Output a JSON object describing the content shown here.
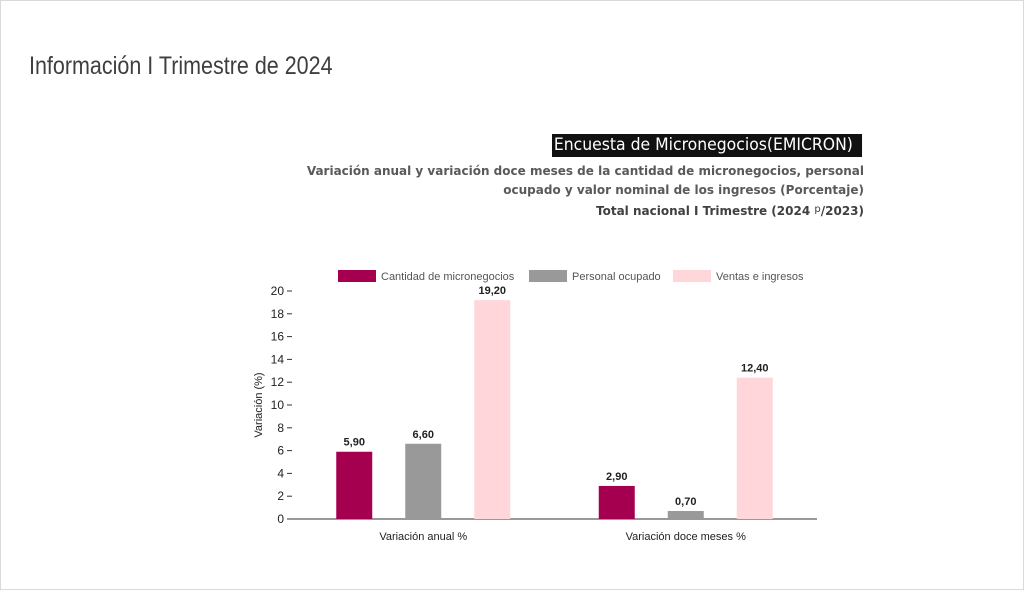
{
  "page": {
    "title": "Información I Trimestre de 2024"
  },
  "chart_heading": "Encuesta de Micronegocios(EMICRON)",
  "subtitle": {
    "line1": "Variación anual y variación doce meses de la cantidad de micronegocios, personal",
    "line2": "ocupado y valor nominal de los ingresos (Porcentaje)",
    "line3_prefix": "Total nacional I Trimestre (2024",
    "line3_sup": "p",
    "line3_suffix": "/2023)"
  },
  "chart_data": {
    "type": "bar",
    "categories": [
      "Variación anual %",
      "Variación doce meses %"
    ],
    "series": [
      {
        "name": "Cantidad de micronegocios",
        "values": [
          5.9,
          2.9
        ],
        "labels": [
          "5,90",
          "2,90"
        ],
        "color": "#a50050"
      },
      {
        "name": "Personal ocupado",
        "values": [
          6.6,
          0.7
        ],
        "labels": [
          "6,60",
          "0,70"
        ],
        "color": "#999999"
      },
      {
        "name": "Ventas e ingresos",
        "values": [
          19.2,
          12.4
        ],
        "labels": [
          "19,20",
          "12,40"
        ],
        "color": "#ffd6d9"
      }
    ],
    "ylabel": "Variación (%)",
    "ylim": [
      0,
      20
    ],
    "yticks": [
      0,
      2,
      4,
      6,
      8,
      10,
      12,
      14,
      16,
      18,
      20
    ],
    "legend_position": "top",
    "grid": false
  }
}
